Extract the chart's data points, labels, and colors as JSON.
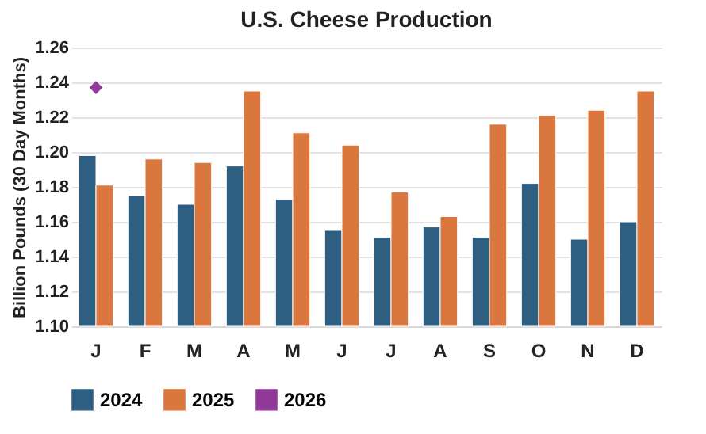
{
  "chart_data": {
    "type": "bar",
    "title": "U.S. Cheese Production",
    "ylabel": "Billion Pounds (30 Day Months)",
    "categories": [
      "J",
      "F",
      "M",
      "A",
      "M",
      "J",
      "J",
      "A",
      "S",
      "O",
      "N",
      "D"
    ],
    "series": [
      {
        "name": "2024",
        "color": "#2e5f80",
        "values": [
          1.198,
          1.175,
          1.17,
          1.192,
          1.173,
          1.155,
          1.151,
          1.157,
          1.151,
          1.182,
          1.15,
          1.16
        ]
      },
      {
        "name": "2025",
        "color": "#d9773f",
        "values": [
          1.181,
          1.196,
          1.194,
          1.235,
          1.211,
          1.204,
          1.177,
          1.163,
          1.216,
          1.221,
          1.224,
          1.235
        ]
      },
      {
        "name": "2026",
        "type": "line",
        "color": "#93399a",
        "marker": "diamond",
        "values": [
          1.237,
          null,
          null,
          null,
          null,
          null,
          null,
          null,
          null,
          null,
          null,
          null
        ]
      }
    ],
    "ylim": [
      1.1,
      1.26
    ],
    "yticks": [
      {
        "value": 1.1,
        "label": "1.10"
      },
      1.12,
      1.14,
      1.16,
      1.18,
      {
        "value": 1.2,
        "label": "1.20"
      },
      1.22,
      1.24,
      1.26
    ],
    "grid": "y",
    "legend": "bottom"
  }
}
